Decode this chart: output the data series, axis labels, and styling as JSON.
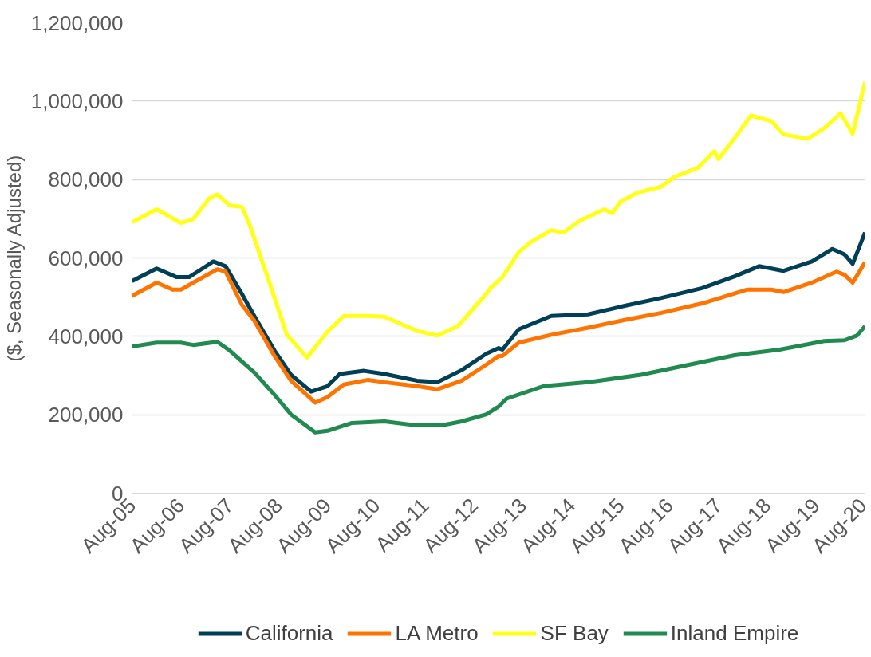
{
  "chart_data": {
    "type": "line",
    "ylabel": "($, Seasonally Adjusted)",
    "xlim": [
      "2005-08",
      "2020-08"
    ],
    "ylim": [
      0,
      1200000
    ],
    "xticks": [
      {
        "value": "2005-08",
        "label": "Aug-05"
      },
      {
        "value": "2006-08",
        "label": "Aug-06"
      },
      {
        "value": "2007-08",
        "label": "Aug-07"
      },
      {
        "value": "2008-08",
        "label": "Aug-08"
      },
      {
        "value": "2009-08",
        "label": "Aug-09"
      },
      {
        "value": "2010-08",
        "label": "Aug-10"
      },
      {
        "value": "2011-08",
        "label": "Aug-11"
      },
      {
        "value": "2012-08",
        "label": "Aug-12"
      },
      {
        "value": "2013-08",
        "label": "Aug-13"
      },
      {
        "value": "2014-08",
        "label": "Aug-14"
      },
      {
        "value": "2015-08",
        "label": "Aug-15"
      },
      {
        "value": "2016-08",
        "label": "Aug-16"
      },
      {
        "value": "2017-08",
        "label": "Aug-17"
      },
      {
        "value": "2018-08",
        "label": "Aug-18"
      },
      {
        "value": "2019-08",
        "label": "Aug-19"
      },
      {
        "value": "2020-08",
        "label": "Aug-20"
      }
    ],
    "yticks": [
      {
        "value": 0,
        "label": "0"
      },
      {
        "value": 200000,
        "label": "200,000"
      },
      {
        "value": 400000,
        "label": "400,000"
      },
      {
        "value": 600000,
        "label": "600,000"
      },
      {
        "value": 800000,
        "label": "800,000"
      },
      {
        "value": 1000000,
        "label": "1,000,000"
      },
      {
        "value": 1200000,
        "label": "1,200,000"
      }
    ],
    "grid": "y",
    "legend": "bottom",
    "marker": "none",
    "line_style": "solid",
    "series": [
      {
        "name": "California",
        "color": "#003f55",
        "x": [
          "2005-08",
          "2006-02",
          "2006-07",
          "2006-10",
          "2007-01",
          "2007-04",
          "2007-07",
          "2007-11",
          "2008-02",
          "2008-07",
          "2008-11",
          "2009-04",
          "2009-08",
          "2009-11",
          "2010-05",
          "2010-10",
          "2011-06",
          "2011-11",
          "2012-05",
          "2012-11",
          "2013-02",
          "2013-03",
          "2013-07",
          "2014-03",
          "2014-12",
          "2015-09",
          "2016-06",
          "2017-04",
          "2017-12",
          "2018-06",
          "2018-12",
          "2019-07",
          "2019-12",
          "2020-03",
          "2020-05",
          "2020-08"
        ],
        "values": [
          541000,
          573000,
          551000,
          551000,
          571000,
          591000,
          579000,
          508000,
          452000,
          364000,
          302000,
          259000,
          273000,
          304000,
          312000,
          304000,
          287000,
          283000,
          314000,
          356000,
          370000,
          366000,
          418000,
          452000,
          456000,
          478000,
          498000,
          523000,
          553000,
          579000,
          567000,
          591000,
          623000,
          609000,
          585000,
          665000
        ]
      },
      {
        "name": "LA Metro",
        "color": "#ff7300",
        "x": [
          "2005-08",
          "2006-02",
          "2006-06",
          "2006-08",
          "2006-11",
          "2007-05",
          "2007-07",
          "2007-11",
          "2008-02",
          "2008-07",
          "2008-11",
          "2009-05",
          "2009-08",
          "2009-12",
          "2010-06",
          "2010-10",
          "2011-06",
          "2011-11",
          "2012-05",
          "2012-11",
          "2013-02",
          "2013-03",
          "2013-07",
          "2014-03",
          "2014-12",
          "2015-09",
          "2016-06",
          "2017-04",
          "2018-03",
          "2018-09",
          "2018-12",
          "2019-07",
          "2020-01",
          "2020-03",
          "2020-05",
          "2020-08"
        ],
        "values": [
          503000,
          537000,
          519000,
          519000,
          537000,
          571000,
          565000,
          480000,
          440000,
          350000,
          287000,
          231000,
          245000,
          277000,
          289000,
          283000,
          273000,
          265000,
          287000,
          328000,
          350000,
          350000,
          384000,
          404000,
          422000,
          442000,
          460000,
          484000,
          519000,
          519000,
          513000,
          537000,
          565000,
          557000,
          537000,
          589000
        ]
      },
      {
        "name": "SF Bay",
        "color": "#ffff19",
        "x": [
          "2005-08",
          "2006-02",
          "2006-08",
          "2006-11",
          "2007-03",
          "2007-05",
          "2007-08",
          "2007-11",
          "2008-01",
          "2008-06",
          "2008-10",
          "2009-03",
          "2009-08",
          "2009-12",
          "2010-06",
          "2010-10",
          "2011-06",
          "2011-11",
          "2012-04",
          "2012-11",
          "2012-12",
          "2013-03",
          "2013-07",
          "2013-10",
          "2014-03",
          "2014-06",
          "2014-10",
          "2015-04",
          "2015-06",
          "2015-08",
          "2015-12",
          "2016-06",
          "2016-09",
          "2017-03",
          "2017-07",
          "2017-08",
          "2017-12",
          "2018-04",
          "2018-09",
          "2018-12",
          "2019-06",
          "2019-10",
          "2020-02",
          "2020-05",
          "2020-08"
        ],
        "values": [
          691000,
          724000,
          689000,
          699000,
          752000,
          762000,
          734000,
          730000,
          681000,
          529000,
          404000,
          346000,
          412000,
          452000,
          452000,
          450000,
          414000,
          402000,
          426000,
          509000,
          523000,
          551000,
          615000,
          641000,
          671000,
          665000,
          695000,
          724000,
          714000,
          744000,
          766000,
          782000,
          806000,
          830000,
          872000,
          852000,
          906000,
          963000,
          949000,
          915000,
          904000,
          931000,
          969000,
          917000,
          1049000
        ]
      },
      {
        "name": "Inland Empire",
        "color": "#208a50",
        "x": [
          "2005-08",
          "2006-02",
          "2006-08",
          "2006-11",
          "2007-05",
          "2007-08",
          "2008-02",
          "2008-07",
          "2008-11",
          "2009-05",
          "2009-08",
          "2010-02",
          "2010-10",
          "2011-06",
          "2011-12",
          "2012-05",
          "2012-11",
          "2013-02",
          "2013-04",
          "2014-01",
          "2014-12",
          "2016-01",
          "2016-12",
          "2017-12",
          "2018-11",
          "2019-10",
          "2020-03",
          "2020-06",
          "2020-08"
        ],
        "values": [
          374000,
          384000,
          384000,
          378000,
          386000,
          364000,
          308000,
          251000,
          201000,
          155000,
          159000,
          179000,
          183000,
          173000,
          173000,
          183000,
          201000,
          221000,
          241000,
          273000,
          283000,
          302000,
          326000,
          352000,
          366000,
          388000,
          390000,
          402000,
          426000
        ]
      }
    ]
  }
}
